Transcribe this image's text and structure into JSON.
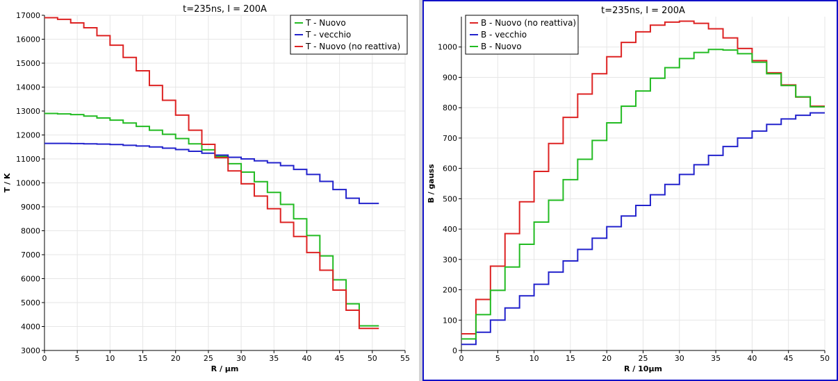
{
  "chart_data": [
    {
      "type": "line",
      "title": "t=235ns, I = 200A",
      "xlabel": "R / µm",
      "ylabel": "T / K",
      "xlim": [
        0,
        55
      ],
      "ylim": [
        3000,
        17000
      ],
      "xticks": [
        0,
        5,
        10,
        15,
        20,
        25,
        30,
        35,
        40,
        45,
        50,
        55
      ],
      "yticks": [
        3000,
        4000,
        5000,
        6000,
        7000,
        8000,
        9000,
        10000,
        11000,
        12000,
        13000,
        14000,
        15000,
        16000,
        17000
      ],
      "grid": true,
      "legend_position": "top-right",
      "step": true,
      "series": [
        {
          "name": "T - Nuovo",
          "color": "#22bb22",
          "x": [
            0,
            2,
            4,
            6,
            8,
            10,
            12,
            14,
            16,
            18,
            20,
            22,
            24,
            26,
            28,
            30,
            32,
            34,
            36,
            38,
            40,
            42,
            44,
            46,
            48,
            51
          ],
          "y": [
            12900,
            12880,
            12850,
            12790,
            12710,
            12620,
            12500,
            12360,
            12200,
            12030,
            11850,
            11630,
            11380,
            11100,
            10800,
            10450,
            10050,
            9600,
            9100,
            8500,
            7800,
            6950,
            5950,
            4950,
            4030,
            4030
          ]
        },
        {
          "name": "T - vecchio",
          "color": "#2222cc",
          "x": [
            0,
            2,
            4,
            6,
            8,
            10,
            12,
            14,
            16,
            18,
            20,
            22,
            24,
            26,
            28,
            30,
            32,
            34,
            36,
            38,
            40,
            42,
            44,
            46,
            48,
            51
          ],
          "y": [
            11650,
            11650,
            11640,
            11630,
            11620,
            11600,
            11570,
            11540,
            11500,
            11450,
            11390,
            11320,
            11240,
            11160,
            11070,
            11000,
            10920,
            10840,
            10720,
            10560,
            10350,
            10060,
            9720,
            9360,
            9140,
            9140
          ]
        },
        {
          "name": "T - Nuovo (no reattiva)",
          "color": "#dd2222",
          "x": [
            0,
            2,
            4,
            6,
            8,
            10,
            12,
            14,
            16,
            18,
            20,
            22,
            24,
            26,
            28,
            30,
            32,
            34,
            36,
            38,
            40,
            42,
            44,
            46,
            48,
            51
          ],
          "y": [
            16900,
            16830,
            16680,
            16480,
            16150,
            15750,
            15240,
            14680,
            14070,
            13450,
            12830,
            12200,
            11610,
            11050,
            10500,
            9960,
            9450,
            8920,
            8350,
            7760,
            7090,
            6350,
            5520,
            4680,
            3920,
            3920
          ]
        }
      ]
    },
    {
      "type": "line",
      "title": "t=235ns, I = 200A",
      "xlabel": "R / 10µm",
      "ylabel": "B / gauss",
      "xlim": [
        0,
        50
      ],
      "ylim": [
        0,
        1100
      ],
      "xticks": [
        0,
        5,
        10,
        15,
        20,
        25,
        30,
        35,
        40,
        45,
        50
      ],
      "yticks": [
        0,
        100,
        200,
        300,
        400,
        500,
        600,
        700,
        800,
        900,
        1000
      ],
      "grid": true,
      "legend_position": "top-left",
      "step": true,
      "series": [
        {
          "name": "B - Nuovo (no reattiva)",
          "color": "#dd2222",
          "x": [
            0,
            2,
            4,
            6,
            8,
            10,
            12,
            14,
            16,
            18,
            20,
            22,
            24,
            26,
            28,
            30,
            32,
            34,
            36,
            38,
            40,
            42,
            44,
            46,
            48,
            50
          ],
          "y": [
            55,
            168,
            278,
            385,
            490,
            590,
            682,
            768,
            845,
            912,
            968,
            1015,
            1050,
            1072,
            1082,
            1085,
            1078,
            1060,
            1030,
            995,
            955,
            915,
            875,
            835,
            805,
            805
          ]
        },
        {
          "name": "B - vecchio",
          "color": "#2222cc",
          "x": [
            0,
            2,
            4,
            6,
            8,
            10,
            12,
            14,
            16,
            18,
            20,
            22,
            24,
            26,
            28,
            30,
            32,
            34,
            36,
            38,
            40,
            42,
            44,
            46,
            48,
            50
          ],
          "y": [
            20,
            60,
            100,
            140,
            180,
            218,
            258,
            295,
            333,
            370,
            408,
            443,
            478,
            513,
            547,
            580,
            612,
            643,
            672,
            700,
            723,
            745,
            763,
            775,
            783,
            783
          ]
        },
        {
          "name": "B - Nuovo",
          "color": "#22bb22",
          "x": [
            0,
            2,
            4,
            6,
            8,
            10,
            12,
            14,
            16,
            18,
            20,
            22,
            24,
            26,
            28,
            30,
            32,
            34,
            36,
            38,
            40,
            42,
            44,
            46,
            48,
            50
          ],
          "y": [
            38,
            118,
            198,
            275,
            350,
            423,
            495,
            563,
            630,
            692,
            750,
            805,
            855,
            897,
            932,
            962,
            982,
            992,
            990,
            978,
            950,
            912,
            873,
            836,
            803,
            803
          ]
        }
      ]
    }
  ]
}
